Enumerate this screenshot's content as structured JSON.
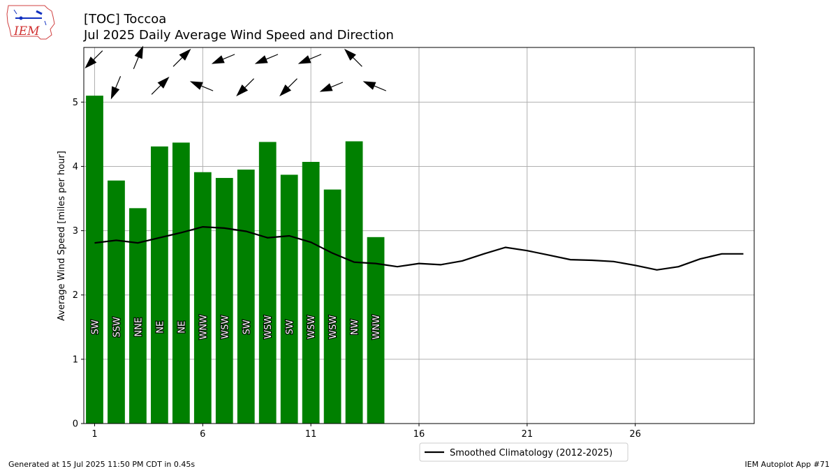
{
  "header": {
    "title_line1": "[TOC] Toccoa",
    "title_line2": "Jul 2025 Daily Average Wind Speed and Direction"
  },
  "logo": {
    "text": "IEM",
    "icon": "iem-iowa-logo-icon"
  },
  "footer": {
    "left": "Generated at 15 Jul 2025 11:50 PM CDT in 0.45s",
    "right": "IEM Autoplot App #71"
  },
  "colors": {
    "bar": "#008000",
    "line": "#000000",
    "grid": "#b0b0b0"
  },
  "chart_data": {
    "type": "bar",
    "ylabel": "Average Wind Speed [miles per hour]",
    "xlabel": "",
    "xlim": [
      0.5,
      31.5
    ],
    "ylim": [
      0,
      5.85
    ],
    "xticks": [
      1,
      6,
      11,
      16,
      21,
      26
    ],
    "yticks": [
      0,
      1,
      2,
      3,
      4,
      5
    ],
    "grid": true,
    "legend_position": "bottom-center",
    "series": [
      {
        "kind": "bar",
        "days": [
          1,
          2,
          3,
          4,
          5,
          6,
          7,
          8,
          9,
          10,
          11,
          12,
          13,
          14
        ],
        "values": [
          5.1,
          3.78,
          3.35,
          4.31,
          4.37,
          3.91,
          3.82,
          3.95,
          4.38,
          3.87,
          4.07,
          3.64,
          4.39,
          2.9
        ],
        "directions": [
          "SW",
          "SSW",
          "NNE",
          "NE",
          "NE",
          "WNW",
          "WSW",
          "SW",
          "WSW",
          "SW",
          "WSW",
          "WSW",
          "NW",
          "WNW"
        ],
        "direction_degrees": [
          225,
          202.5,
          22.5,
          45,
          45,
          292.5,
          247.5,
          225,
          247.5,
          225,
          247.5,
          247.5,
          315,
          292.5
        ]
      },
      {
        "kind": "line",
        "name": "Smoothed Climatology (2012-2025)",
        "x": [
          1,
          2,
          3,
          4,
          5,
          6,
          7,
          8,
          9,
          10,
          11,
          12,
          13,
          14,
          15,
          16,
          17,
          18,
          19,
          20,
          21,
          22,
          23,
          24,
          25,
          26,
          27,
          28,
          29,
          30,
          31
        ],
        "y": [
          2.81,
          2.85,
          2.81,
          2.89,
          2.97,
          3.06,
          3.04,
          2.99,
          2.89,
          2.92,
          2.82,
          2.65,
          2.51,
          2.49,
          2.44,
          2.49,
          2.47,
          2.53,
          2.64,
          2.74,
          2.69,
          2.62,
          2.55,
          2.54,
          2.52,
          2.46,
          2.39,
          2.44,
          2.56,
          2.64,
          2.64
        ]
      }
    ]
  }
}
